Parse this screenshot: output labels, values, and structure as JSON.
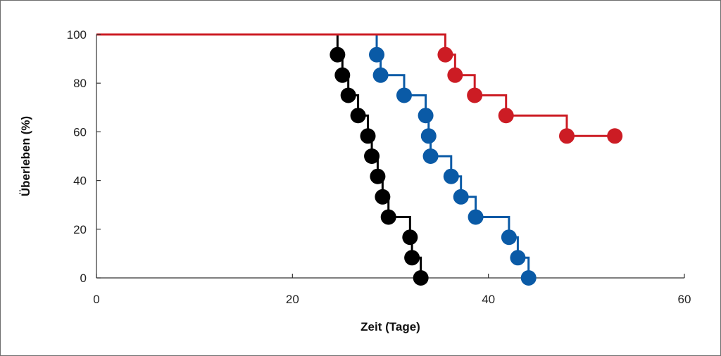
{
  "chart_data": {
    "type": "line",
    "title": "",
    "xlabel": "Zeit (Tage)",
    "ylabel": "Überleben (%)",
    "xlim": [
      0,
      60
    ],
    "ylim": [
      0,
      100
    ],
    "xticks": [
      0,
      20,
      40,
      60
    ],
    "yticks": [
      0,
      20,
      40,
      60,
      80,
      100
    ],
    "grid": false,
    "legend": "none",
    "series": [
      {
        "color": "#000000",
        "steps": [
          {
            "x": 24.6,
            "y": 91.7
          },
          {
            "x": 25.1,
            "y": 83.3
          },
          {
            "x": 25.7,
            "y": 75.0
          },
          {
            "x": 26.7,
            "y": 66.7
          },
          {
            "x": 27.7,
            "y": 58.3
          },
          {
            "x": 28.1,
            "y": 50.0
          },
          {
            "x": 28.7,
            "y": 41.7
          },
          {
            "x": 29.2,
            "y": 33.3
          },
          {
            "x": 29.8,
            "y": 25.0
          },
          {
            "x": 32.0,
            "y": 16.7
          },
          {
            "x": 32.2,
            "y": 8.3
          },
          {
            "x": 33.1,
            "y": 0
          }
        ]
      },
      {
        "color": "#0a5aa6",
        "steps": [
          {
            "x": 28.6,
            "y": 91.7
          },
          {
            "x": 29.0,
            "y": 83.3
          },
          {
            "x": 31.4,
            "y": 75.0
          },
          {
            "x": 33.6,
            "y": 66.7
          },
          {
            "x": 33.9,
            "y": 58.3
          },
          {
            "x": 34.1,
            "y": 50.0
          },
          {
            "x": 36.2,
            "y": 41.7
          },
          {
            "x": 37.2,
            "y": 33.3
          },
          {
            "x": 38.7,
            "y": 25.0
          },
          {
            "x": 42.1,
            "y": 16.7
          },
          {
            "x": 43.0,
            "y": 8.3
          },
          {
            "x": 44.1,
            "y": 0
          }
        ]
      },
      {
        "color": "#cc1c24",
        "steps": [
          {
            "x": 35.6,
            "y": 91.7
          },
          {
            "x": 36.6,
            "y": 83.3
          },
          {
            "x": 38.6,
            "y": 75.0
          },
          {
            "x": 41.8,
            "y": 66.7
          },
          {
            "x": 48.0,
            "y": 58.3
          }
        ],
        "censored": [
          {
            "x": 52.9,
            "y": 58.3
          }
        ]
      }
    ]
  }
}
